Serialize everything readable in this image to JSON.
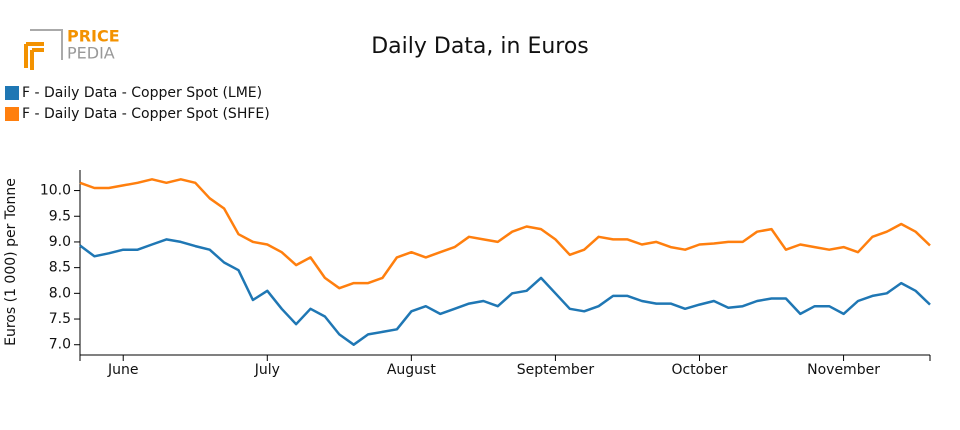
{
  "logo": {
    "line1": "PRICE",
    "line2": "PEDIA"
  },
  "chart_data": {
    "type": "line",
    "title": "Daily Data, in Euros",
    "y_label": "Euros (1 000) per Tonne",
    "legend": "top-left",
    "categories": [
      null,
      null,
      null,
      "June",
      null,
      null,
      null,
      null,
      null,
      null,
      null,
      null,
      null,
      "July",
      null,
      null,
      null,
      null,
      null,
      null,
      null,
      null,
      null,
      "August",
      null,
      null,
      null,
      null,
      null,
      null,
      null,
      null,
      null,
      "September",
      null,
      null,
      null,
      null,
      null,
      null,
      null,
      null,
      null,
      "October",
      null,
      null,
      null,
      null,
      null,
      null,
      null,
      null,
      null,
      "November",
      null,
      null,
      null,
      null,
      null,
      null
    ],
    "series": [
      {
        "name": "F - Daily Data - Copper Spot (LME)",
        "color": "#1f77b4",
        "values": [
          8.93,
          8.72,
          8.78,
          8.85,
          8.85,
          8.95,
          9.05,
          9.0,
          8.92,
          8.85,
          8.6,
          8.45,
          7.87,
          8.05,
          7.7,
          7.4,
          7.7,
          7.55,
          7.2,
          7.0,
          7.2,
          7.25,
          7.3,
          7.65,
          7.75,
          7.6,
          7.7,
          7.8,
          7.85,
          7.75,
          8.0,
          8.05,
          8.3,
          8.0,
          7.7,
          7.65,
          7.75,
          7.95,
          7.95,
          7.85,
          7.8,
          7.8,
          7.7,
          7.78,
          7.85,
          7.72,
          7.75,
          7.85,
          7.9,
          7.9,
          7.6,
          7.75,
          7.75,
          7.6,
          7.85,
          7.95,
          8.0,
          8.2,
          8.05,
          7.78
        ]
      },
      {
        "name": "F - Daily Data - Copper Spot (SHFE)",
        "color": "#ff7f0e",
        "values": [
          10.15,
          10.05,
          10.05,
          10.1,
          10.15,
          10.22,
          10.15,
          10.22,
          10.15,
          9.85,
          9.65,
          9.15,
          9.0,
          8.95,
          8.8,
          8.55,
          8.7,
          8.3,
          8.1,
          8.2,
          8.2,
          8.3,
          8.7,
          8.8,
          8.7,
          8.8,
          8.9,
          9.1,
          9.05,
          9.0,
          9.2,
          9.3,
          9.25,
          9.05,
          8.75,
          8.85,
          9.1,
          9.05,
          9.05,
          8.95,
          9.0,
          8.9,
          8.85,
          8.95,
          8.97,
          9.0,
          9.0,
          9.2,
          9.25,
          8.85,
          8.95,
          8.9,
          8.85,
          8.9,
          8.8,
          9.1,
          9.2,
          9.35,
          9.2,
          8.93
        ]
      }
    ],
    "ylim": [
      6.8,
      10.4
    ],
    "yticks": [
      {
        "value": 7,
        "label": "7.0"
      },
      {
        "value": 7.5,
        "label": "7.5"
      },
      {
        "value": 8,
        "label": "8.0"
      },
      {
        "value": 8.5,
        "label": "8.5"
      },
      {
        "value": 9,
        "label": "9.0"
      },
      {
        "value": 9.5,
        "label": "9.5"
      },
      {
        "value": 10,
        "label": "10.0"
      }
    ]
  }
}
